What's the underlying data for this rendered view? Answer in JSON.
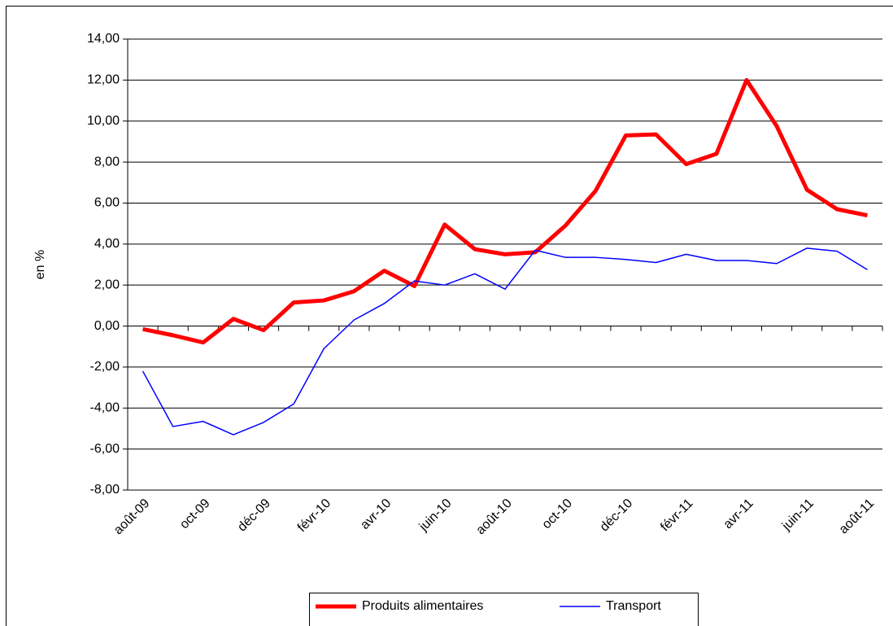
{
  "chart_data": {
    "type": "line",
    "y_label": "en %",
    "categories": [
      "août-09",
      null,
      "oct-09",
      null,
      "déc-09",
      null,
      "févr-10",
      null,
      "avr-10",
      null,
      "juin-10",
      null,
      "août-10",
      null,
      "oct-10",
      null,
      "déc-10",
      null,
      "févr-11",
      null,
      "avr-11",
      null,
      "juin-11",
      null,
      "août-11"
    ],
    "series": [
      {
        "name": "Produits alimentaires",
        "color": "#ff0000",
        "values": [
          -0.15,
          -0.45,
          -0.8,
          0.35,
          -0.2,
          1.15,
          1.25,
          1.7,
          2.7,
          1.95,
          4.95,
          3.75,
          3.5,
          3.6,
          4.9,
          6.6,
          9.3,
          9.35,
          7.9,
          8.4,
          12.0,
          9.75,
          6.65,
          5.7,
          5.4
        ]
      },
      {
        "name": "Transport",
        "color": "#0000ff",
        "values": [
          -2.2,
          -4.9,
          -4.65,
          -5.3,
          -4.7,
          -3.8,
          -1.1,
          0.3,
          1.1,
          2.2,
          2.0,
          2.55,
          1.8,
          3.7,
          3.35,
          3.35,
          3.25,
          3.1,
          3.5,
          3.2,
          3.2,
          3.05,
          3.8,
          3.65,
          2.75
        ]
      }
    ],
    "ylim": [
      -8,
      14
    ],
    "yticks": [
      {
        "value": -8,
        "label": "-8,00"
      },
      {
        "value": -6,
        "label": "-6,00"
      },
      {
        "value": -4,
        "label": "-4,00"
      },
      {
        "value": -2,
        "label": "-2,00"
      },
      {
        "value": 0,
        "label": "0,00"
      },
      {
        "value": 2,
        "label": "2,00"
      },
      {
        "value": 4,
        "label": "4,00"
      },
      {
        "value": 6,
        "label": "6,00"
      },
      {
        "value": 8,
        "label": "8,00"
      },
      {
        "value": 10,
        "label": "10,00"
      },
      {
        "value": 12,
        "label": "12,00"
      },
      {
        "value": 14,
        "label": "14,00"
      }
    ],
    "grid": true,
    "legend": "bottom"
  }
}
